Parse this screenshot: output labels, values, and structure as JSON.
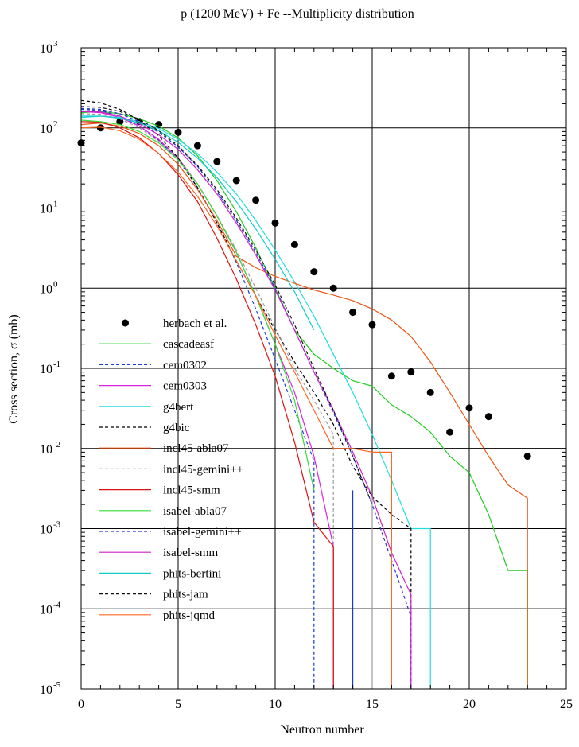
{
  "chart_data": {
    "type": "line",
    "title": "p (1200 MeV) + Fe --Multiplicity distribution",
    "xlabel": "Neutron number",
    "ylabel": "Cross section, σ (mb)",
    "xlim": [
      0,
      25
    ],
    "ylim": [
      1e-05,
      1000
    ],
    "yscale": "log",
    "grid": true,
    "legend_position": "left-center",
    "x_ticks": [
      "0",
      "5",
      "10",
      "15",
      "20",
      "25"
    ],
    "y_ticks": [
      {
        "base": "10",
        "exp": "-5"
      },
      {
        "base": "10",
        "exp": "-4"
      },
      {
        "base": "10",
        "exp": "-3"
      },
      {
        "base": "10",
        "exp": "-2"
      },
      {
        "base": "10",
        "exp": "-1"
      },
      {
        "base": "10",
        "exp": "0"
      },
      {
        "base": "10",
        "exp": "1"
      },
      {
        "base": "10",
        "exp": "2"
      },
      {
        "base": "10",
        "exp": "3"
      }
    ],
    "series": [
      {
        "name": "herbach et al.",
        "style": "points",
        "color": "#000000",
        "x": [
          0,
          1,
          2,
          3,
          4,
          5,
          6,
          7,
          8,
          9,
          10,
          11,
          12,
          13,
          14,
          15,
          16,
          17,
          18,
          19,
          20,
          21,
          23
        ],
        "y": [
          65,
          100,
          120,
          120,
          110,
          88,
          60,
          38,
          22,
          12.5,
          6.5,
          3.5,
          1.6,
          1.0,
          0.5,
          0.35,
          0.08,
          0.09,
          0.05,
          0.016,
          0.032,
          0.025,
          0.008
        ]
      },
      {
        "name": "cascadeasf",
        "style": "solid",
        "color": "#22cc22",
        "x": [
          0,
          1,
          2,
          3,
          4,
          5,
          6,
          7,
          8,
          9,
          10,
          11,
          12,
          13,
          14,
          15,
          16,
          17,
          18,
          19,
          20,
          21,
          22,
          23,
          23
        ],
        "y": [
          155,
          160,
          150,
          130,
          105,
          75,
          45,
          22,
          9,
          3.2,
          1.0,
          0.3,
          0.15,
          0.1,
          0.07,
          0.06,
          0.035,
          0.025,
          0.016,
          0.008,
          0.005,
          0.0015,
          0.0003,
          0.0003,
          1e-05
        ]
      },
      {
        "name": "cem0302",
        "style": "dashed",
        "color": "#1a3ad4",
        "x": [
          0,
          1,
          2,
          3,
          4,
          5,
          6,
          7,
          8,
          9,
          10,
          11,
          12,
          12
        ],
        "y": [
          170,
          165,
          140,
          105,
          70,
          40,
          18,
          6.5,
          2.1,
          0.55,
          0.13,
          0.03,
          0.007,
          1e-05
        ]
      },
      {
        "name": "cem0303",
        "style": "solid",
        "color": "#e020e0",
        "x": [
          0,
          1,
          2,
          3,
          4,
          5,
          6,
          7,
          8,
          9,
          10,
          11,
          12,
          13,
          13
        ],
        "y": [
          160,
          155,
          135,
          105,
          72,
          42,
          20,
          8,
          2.8,
          0.8,
          0.2,
          0.05,
          0.008,
          0.0006,
          1e-05
        ]
      },
      {
        "name": "g4bert",
        "style": "solid",
        "color": "#22dddd",
        "x": [
          0,
          1,
          2,
          3,
          4,
          5,
          6,
          7,
          8,
          9,
          10,
          11,
          12,
          13,
          14,
          15,
          16,
          17,
          18,
          18
        ],
        "y": [
          135,
          140,
          135,
          120,
          98,
          72,
          48,
          28,
          15,
          7,
          3,
          1.2,
          0.45,
          0.15,
          0.05,
          0.015,
          0.004,
          0.001,
          0.001,
          1e-05
        ]
      },
      {
        "name": "g4bic",
        "style": "dashed",
        "color": "#000000",
        "x": [
          0,
          1,
          2,
          3,
          4,
          5,
          6,
          7,
          8,
          9,
          10,
          11,
          12,
          13,
          14,
          15,
          16,
          17,
          17
        ],
        "y": [
          220,
          205,
          170,
          125,
          80,
          42,
          18,
          6.5,
          2.2,
          0.8,
          0.3,
          0.12,
          0.05,
          0.02,
          0.006,
          0.0025,
          0.0015,
          0.001,
          1e-05
        ]
      },
      {
        "name": "incl45-abla07",
        "style": "solid",
        "color": "#ee5511",
        "x": [
          0,
          1,
          2,
          3,
          4,
          5,
          6,
          7,
          8,
          9,
          10,
          11,
          12,
          13,
          14,
          15,
          16,
          17,
          18,
          19,
          20,
          21,
          22,
          23,
          23
        ],
        "y": [
          110,
          115,
          105,
          85,
          60,
          35,
          17,
          7,
          2.5,
          1.8,
          1.4,
          1.15,
          0.95,
          0.82,
          0.7,
          0.55,
          0.4,
          0.25,
          0.12,
          0.05,
          0.02,
          0.008,
          0.0035,
          0.0024,
          1e-05
        ]
      },
      {
        "name": "incl45-gemini++",
        "style": "dashed",
        "color": "#9a9a9a",
        "x": [
          0,
          1,
          2,
          3,
          4,
          5,
          6,
          7,
          8,
          9,
          10,
          11,
          12,
          13,
          13
        ],
        "y": [
          150,
          148,
          130,
          100,
          68,
          40,
          20,
          8,
          3,
          1,
          0.32,
          0.1,
          0.04,
          0.015,
          1e-05
        ]
      },
      {
        "name": "incl45-smm",
        "style": "solid",
        "color": "#dd1111",
        "x": [
          0,
          1,
          2,
          3,
          4,
          5,
          6,
          7,
          8,
          9,
          10,
          11,
          12,
          13,
          13
        ],
        "y": [
          120,
          118,
          100,
          75,
          48,
          26,
          12,
          4.2,
          1.3,
          0.35,
          0.08,
          0.012,
          0.0012,
          0.0006,
          1e-05
        ]
      },
      {
        "name": "isabel-abla07",
        "style": "solid",
        "color": "#33dd33",
        "x": [
          0,
          1,
          2,
          3,
          4,
          5,
          6,
          7,
          8,
          9,
          10,
          11,
          12
        ],
        "y": [
          125,
          120,
          110,
          90,
          65,
          40,
          20,
          8,
          2.8,
          0.8,
          0.2,
          0.04,
          0.003
        ]
      },
      {
        "name": "isabel-gemini++",
        "style": "dashed",
        "color": "#2233cc",
        "x": [
          0,
          1,
          2,
          3,
          4,
          5,
          6,
          7,
          8,
          9,
          10,
          11,
          12,
          13,
          14,
          15,
          16,
          17,
          17
        ],
        "y": [
          175,
          170,
          150,
          120,
          88,
          58,
          33,
          16,
          7,
          2.8,
          1,
          0.3,
          0.09,
          0.028,
          0.008,
          0.002,
          0.0004,
          8e-05,
          1e-05
        ]
      },
      {
        "name": "isabel-smm",
        "style": "solid",
        "color": "#cc22cc",
        "x": [
          0,
          1,
          2,
          3,
          4,
          5,
          6,
          7,
          8,
          9,
          10,
          11,
          12,
          13,
          14,
          15,
          16,
          17,
          17
        ],
        "y": [
          160,
          158,
          140,
          112,
          82,
          54,
          30,
          15,
          6.5,
          2.6,
          0.95,
          0.3,
          0.09,
          0.03,
          0.009,
          0.0025,
          0.0005,
          0.00015,
          1e-05
        ]
      },
      {
        "name": "phits-bertini",
        "style": "solid",
        "color": "#11cccc",
        "x": [
          0,
          1,
          2,
          3,
          4,
          5,
          6,
          7,
          8,
          9,
          10,
          11,
          12
        ],
        "y": [
          140,
          140,
          132,
          115,
          92,
          66,
          42,
          24,
          12,
          5.5,
          2.3,
          0.9,
          0.3
        ]
      },
      {
        "name": "phits-jam",
        "style": "dashed",
        "color": "#111111",
        "x": [
          0,
          1,
          2,
          3,
          4,
          5,
          6,
          7,
          8,
          9,
          10,
          11,
          12,
          13,
          14,
          15
        ],
        "y": [
          185,
          180,
          160,
          128,
          92,
          60,
          34,
          17,
          7.5,
          3,
          1.1,
          0.35,
          0.1,
          0.03,
          0.008,
          0.002
        ]
      },
      {
        "name": "phits-jqmd",
        "style": "solid",
        "color": "#ff6622",
        "x": [
          0,
          1,
          2,
          3,
          4,
          5,
          6,
          7,
          8,
          9,
          10,
          11,
          12,
          13,
          14,
          15,
          15,
          16,
          16
        ],
        "y": [
          100,
          102,
          92,
          72,
          48,
          28,
          14,
          6,
          2.2,
          0.8,
          0.26,
          0.09,
          0.03,
          0.01,
          0.01,
          0.009,
          0.009,
          0.009,
          1e-05
        ]
      }
    ],
    "drop_lines": [
      {
        "x": 14,
        "y": 0.003,
        "color": "#1a3ad4"
      },
      {
        "x": 15,
        "y": 0.0025,
        "color": "#9a9a9a"
      }
    ],
    "inner_grid_lines": [
      {
        "y": 0.01,
        "x_from": 13,
        "x_to": 25
      },
      {
        "y": 0.001,
        "x_from": 13,
        "x_to": 25
      },
      {
        "y": 0.0001,
        "x_from": 13,
        "x_to": 25
      }
    ]
  }
}
